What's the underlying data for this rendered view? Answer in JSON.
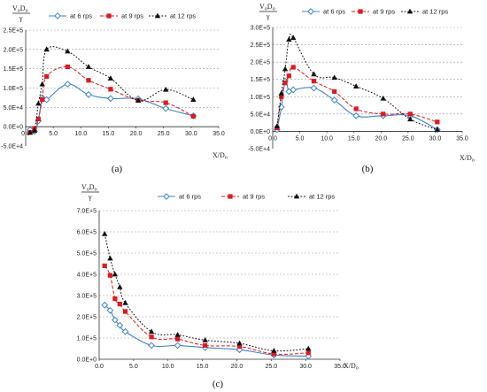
{
  "chart_data": [
    {
      "type": "line",
      "caption": "(a)",
      "y_label_num": "V_oD_o",
      "y_label_den": "γ",
      "x_label": "X/D_o",
      "xlim": [
        0,
        35
      ],
      "ylim": [
        -50000,
        250000
      ],
      "x_ticks": [
        "0.0",
        "5.0",
        "10.0",
        "15.0",
        "20.0",
        "25.0",
        "30.0",
        "35.0"
      ],
      "y_ticks": [
        "-5.0E+4",
        "0.0E+0",
        "5.0E+4",
        "1.0E+5",
        "1.5E+5",
        "2.0E+5",
        "2.5E+5"
      ],
      "legend_position": "top",
      "grid": true,
      "series": [
        {
          "name": "at 6 rps",
          "color": "#3f86c8",
          "marker": "diamond",
          "dash": "none",
          "x": [
            0.8,
            1.6,
            2.3,
            3.0,
            3.8,
            7.6,
            11.4,
            15.4,
            20.4,
            25.4,
            30.4
          ],
          "y": [
            -8000,
            -12000,
            15000,
            75000,
            70000,
            110000,
            83000,
            73000,
            72000,
            47000,
            28000
          ]
        },
        {
          "name": "at 9 rps",
          "color": "#e0191f",
          "marker": "square",
          "dash": "4,2",
          "x": [
            0.8,
            1.6,
            2.3,
            3.0,
            3.8,
            7.6,
            11.4,
            15.4,
            20.4,
            25.4,
            30.4
          ],
          "y": [
            -15000,
            -5000,
            20000,
            70000,
            130000,
            155000,
            120000,
            97000,
            68000,
            62000,
            27000
          ]
        },
        {
          "name": "at 12 rps",
          "color": "#111111",
          "marker": "triangle",
          "dash": "1.8,1.8",
          "x": [
            0.8,
            1.6,
            2.3,
            3.0,
            3.8,
            7.6,
            11.4,
            15.4,
            20.4,
            25.4,
            30.4
          ],
          "y": [
            -15000,
            -10000,
            60000,
            110000,
            200000,
            195000,
            155000,
            125000,
            68000,
            96000,
            70000
          ]
        }
      ]
    },
    {
      "type": "line",
      "caption": "(b)",
      "y_label_num": "V_oD_o",
      "y_label_den": "γ",
      "x_label": "X/D_o",
      "xlim": [
        0,
        35
      ],
      "ylim": [
        -50000,
        300000
      ],
      "x_ticks": [
        "0.0",
        "5.0",
        "10.0",
        "15.0",
        "20.0",
        "25.0",
        "30.0",
        "35.0"
      ],
      "y_ticks": [
        "-5.0E+4",
        "0.0E+0",
        "5.0E+4",
        "1.0E+5",
        "1.5E+5",
        "2.0E+5",
        "2.5E+5",
        "3.0E+5"
      ],
      "legend_position": "top",
      "grid": true,
      "series": [
        {
          "name": "at 6 rps",
          "color": "#3f86c8",
          "marker": "diamond",
          "dash": "none",
          "x": [
            0.8,
            1.6,
            2.3,
            3.0,
            3.8,
            7.6,
            11.4,
            15.4,
            20.4,
            25.4,
            30.4
          ],
          "y": [
            5000,
            70000,
            145000,
            115000,
            120000,
            125000,
            90000,
            45000,
            45000,
            45000,
            5000
          ]
        },
        {
          "name": "at 9 rps",
          "color": "#e0191f",
          "marker": "square",
          "dash": "4,2",
          "x": [
            0.8,
            1.6,
            2.3,
            3.0,
            3.8,
            7.6,
            11.4,
            15.4,
            20.4,
            25.4,
            30.4
          ],
          "y": [
            10000,
            100000,
            140000,
            160000,
            185000,
            145000,
            115000,
            65000,
            50000,
            50000,
            27000
          ]
        },
        {
          "name": "at 12 rps",
          "color": "#111111",
          "marker": "triangle",
          "dash": "1.8,1.8",
          "x": [
            0.8,
            1.6,
            2.3,
            3.0,
            3.8,
            7.6,
            11.4,
            15.4,
            20.4,
            25.4,
            30.4
          ],
          "y": [
            15000,
            110000,
            180000,
            265000,
            270000,
            165000,
            155000,
            130000,
            95000,
            35000,
            5000
          ]
        }
      ]
    },
    {
      "type": "line",
      "caption": "(c)",
      "y_label_num": "V_oD_o",
      "y_label_den": "γ",
      "x_label": "X/D_o",
      "xlim": [
        0,
        35
      ],
      "ylim": [
        0,
        700000
      ],
      "x_ticks": [
        "0.0",
        "5.0",
        "10.0",
        "15.0",
        "20.0",
        "25.0",
        "30.0",
        "35.0"
      ],
      "y_ticks": [
        "0.0E+0",
        "1.0E+5",
        "2.0E+5",
        "3.0E+5",
        "4.0E+5",
        "5.0E+5",
        "6.0E+5",
        "7.0E+5"
      ],
      "legend_position": "top",
      "grid": true,
      "series": [
        {
          "name": "at 6 rps",
          "color": "#3f86c8",
          "marker": "diamond",
          "dash": "none",
          "x": [
            0.8,
            1.6,
            2.3,
            3.0,
            3.8,
            7.6,
            11.4,
            15.4,
            20.4,
            25.4,
            30.4
          ],
          "y": [
            255000,
            230000,
            185000,
            160000,
            130000,
            65000,
            65000,
            55000,
            45000,
            20000,
            15000
          ]
        },
        {
          "name": "at 9 rps",
          "color": "#e0191f",
          "marker": "square",
          "dash": "4,2",
          "x": [
            0.8,
            1.6,
            2.3,
            3.0,
            3.8,
            7.6,
            11.4,
            15.4,
            20.4,
            25.4,
            30.4
          ],
          "y": [
            440000,
            395000,
            285000,
            260000,
            225000,
            105000,
            95000,
            65000,
            60000,
            25000,
            30000
          ]
        },
        {
          "name": "at 12 rps",
          "color": "#111111",
          "marker": "triangle",
          "dash": "1.8,1.8",
          "x": [
            0.8,
            1.6,
            2.3,
            3.0,
            3.8,
            7.6,
            11.4,
            15.4,
            20.4,
            25.4,
            30.4
          ],
          "y": [
            590000,
            475000,
            400000,
            340000,
            265000,
            130000,
            115000,
            90000,
            75000,
            40000,
            50000
          ]
        }
      ]
    }
  ]
}
